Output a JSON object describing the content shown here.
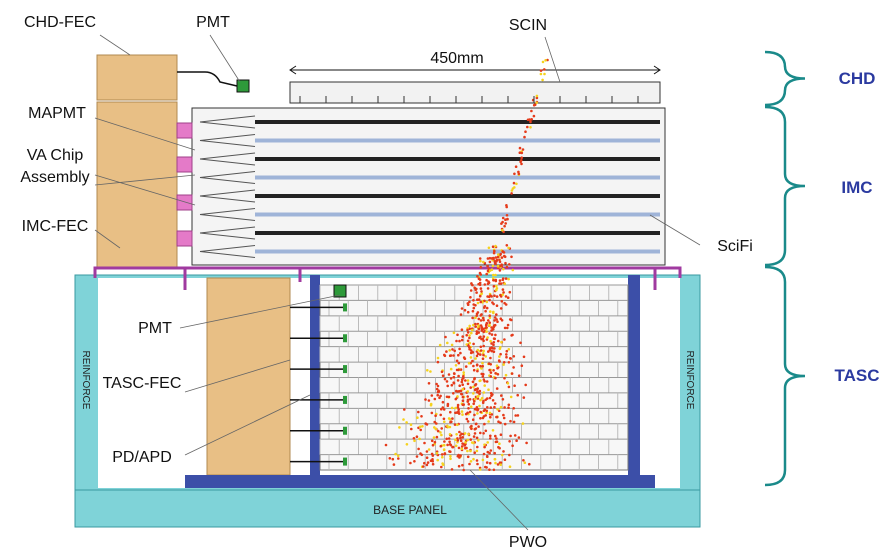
{
  "left_labels": {
    "chd_fec": "CHD-FEC",
    "pmt_top": "PMT",
    "mapmt": "MAPMT",
    "va_chip": [
      "VA Chip",
      "Assembly"
    ],
    "imc_fec": "IMC-FEC",
    "pmt_tasc": "PMT",
    "tasc_fec": "TASC-FEC",
    "pd_apd": "PD/APD"
  },
  "top_labels": {
    "scin": "SCIN",
    "dimension": "450mm"
  },
  "right_labels": {
    "scifi": "SciFi"
  },
  "sections": [
    {
      "label": "CHD"
    },
    {
      "label": "IMC"
    },
    {
      "label": "TASC"
    }
  ],
  "panels": {
    "reinforce_left": "REINFORCE",
    "reinforce_right": "REINFORCE",
    "base": "BASE PANEL"
  },
  "bottom_label": "PWO"
}
